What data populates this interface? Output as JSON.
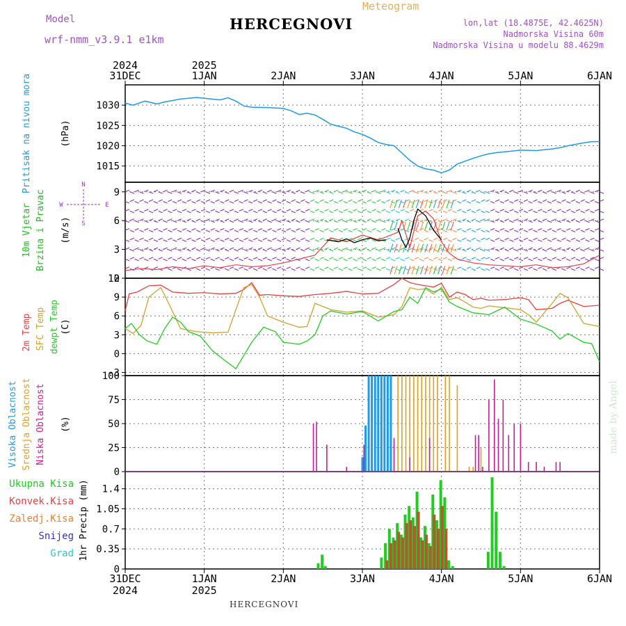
{
  "header": {
    "model_label": "Model",
    "model_value": "wrf-nmm_v3.9.1 e1km",
    "product_label": "Meteogram",
    "location": "HERCEGNOVI",
    "lonlat": "lon,lat (18.4875E, 42.4625N)",
    "elevation": "Nadmorska Visina 60m",
    "model_elevation": "Nadmorska Visina u modelu 88.4629m"
  },
  "footer": {
    "location": "HERCEGNOVI"
  },
  "watermark": "made by Angel",
  "colors": {
    "pressure": "#1e9be6",
    "wind_label": "#22bb22",
    "temp2m": "#e84040",
    "sfc": "#d4a030",
    "dewpt": "#22cc22",
    "high_cloud": "#1e9be6",
    "mid_cloud": "#e0a020",
    "low_cloud": "#cc1a9a",
    "total_precip": "#22cc22",
    "conv_precip": "#e84040",
    "freez_precip": "#f08030",
    "snow": "#3333cc",
    "hail": "#22cccc",
    "purple_text": "#9933cc"
  },
  "chart_data": [
    {
      "type": "line",
      "panel": "pressure",
      "title": "",
      "ylabel": [
        "Pritisak na nivou mora",
        "(hPa)"
      ],
      "x_ticks": [
        "31DEC",
        "1JAN",
        "2JAN",
        "3JAN",
        "4JAN",
        "5JAN",
        "6JAN"
      ],
      "x_years": [
        [
          "2024",
          "31DEC"
        ],
        [
          "2025",
          "1JAN"
        ]
      ],
      "ylim": [
        1011,
        1035
      ],
      "y_ticks": [
        1015,
        1020,
        1025,
        1030
      ],
      "grid": true,
      "series": [
        {
          "x": [
            0,
            0.1,
            0.25,
            0.4,
            0.5,
            0.7,
            0.9,
            1.0,
            1.2,
            1.3,
            1.4,
            1.5,
            1.6,
            1.8,
            2.0,
            2.1,
            2.2,
            2.3,
            2.4,
            2.5,
            2.6,
            2.7,
            2.8,
            2.9,
            3.0,
            3.1,
            3.2,
            3.3,
            3.4,
            3.5,
            3.6,
            3.7,
            3.8,
            3.9,
            4.0,
            4.1,
            4.2,
            4.3,
            4.4,
            4.5,
            4.6,
            4.7,
            4.8,
            4.9,
            5.0,
            5.2,
            5.4,
            5.5,
            5.6,
            5.8,
            5.9,
            6.0
          ],
          "y": [
            1030.5,
            1030,
            1031,
            1030.3,
            1030.8,
            1031.5,
            1031.9,
            1031.7,
            1031.3,
            1031.8,
            1031,
            1029.8,
            1029.5,
            1029.4,
            1029.2,
            1028.6,
            1027.7,
            1028.0,
            1027.6,
            1026.5,
            1025.3,
            1024.8,
            1024.3,
            1023.4,
            1022.8,
            1021.9,
            1020.8,
            1020.3,
            1020,
            1018.2,
            1016.4,
            1015.0,
            1014.3,
            1014.0,
            1013.3,
            1014.0,
            1015.5,
            1016.2,
            1016.9,
            1017.5,
            1018.0,
            1018.3,
            1018.5,
            1018.7,
            1018.9,
            1018.8,
            1019.2,
            1019.5,
            1020.0,
            1020.7,
            1021.0,
            1021.0
          ]
        }
      ]
    },
    {
      "type": "line",
      "panel": "wind",
      "title": "",
      "ylabel": [
        "10m Vjetar",
        "Brzina i Pravac",
        "(m/s)"
      ],
      "compass": [
        "N",
        "W",
        "E",
        "S"
      ],
      "ylim": [
        0,
        10
      ],
      "y_ticks": [
        0,
        3,
        6,
        9
      ],
      "grid": true,
      "series": [
        {
          "name": "",
          "x": [
            0,
            0.2,
            0.4,
            0.6,
            0.8,
            1.0,
            1.2,
            1.4,
            1.6,
            1.8,
            2.0,
            2.2,
            2.4,
            2.6,
            2.8,
            3.0,
            3.2,
            3.3,
            3.45,
            3.5,
            3.6,
            3.7,
            3.8,
            3.9,
            4.0,
            4.1,
            4.2,
            4.3,
            4.4,
            4.6,
            4.8,
            5.0,
            5.2,
            5.4,
            5.6,
            5.8,
            6.0
          ],
          "y": [
            0.8,
            1.0,
            0.9,
            1.2,
            1.0,
            1.3,
            1.1,
            1.4,
            1.2,
            1.3,
            1.6,
            2.0,
            2.4,
            4.2,
            3.8,
            4.5,
            4.0,
            4.3,
            4.8,
            6.0,
            3.2,
            6.5,
            7.0,
            6.2,
            3.8,
            2.6,
            2.0,
            1.8,
            1.6,
            1.4,
            1.3,
            1.2,
            1.4,
            1.1,
            1.2,
            1.5,
            2.4
          ]
        },
        {
          "name": "",
          "x": [
            2.55,
            2.7,
            2.8,
            2.9,
            3.0,
            3.1,
            3.2,
            3.3
          ],
          "y": [
            4.0,
            3.8,
            4.1,
            3.7,
            4.0,
            4.2,
            3.9,
            4.0
          ]
        },
        {
          "name": "",
          "x": [
            3.45,
            3.5,
            3.55,
            3.6,
            3.65,
            3.7,
            3.8,
            3.9,
            4.0
          ],
          "y": [
            5.2,
            4.0,
            3.2,
            4.2,
            6.0,
            7.2,
            6.5,
            5.0,
            4.0
          ]
        }
      ]
    },
    {
      "type": "line",
      "panel": "temperature",
      "title": "",
      "ylabel": [
        "2m Temp",
        "SFC Temp",
        "dewpt Temp",
        "(C)"
      ],
      "ylim": [
        -3.5,
        12
      ],
      "y_ticks": [
        -3,
        0,
        3,
        6,
        9,
        12
      ],
      "grid": true,
      "series": [
        {
          "name": "2m Temp",
          "x": [
            0,
            0.05,
            0.15,
            0.3,
            0.45,
            0.6,
            0.8,
            1.0,
            1.2,
            1.4,
            1.5,
            1.6,
            1.7,
            1.8,
            2.0,
            2.2,
            2.4,
            2.6,
            2.8,
            3.0,
            3.2,
            3.4,
            3.5,
            3.6,
            3.7,
            3.8,
            3.9,
            4.0,
            4.1,
            4.2,
            4.3,
            4.4,
            4.5,
            4.6,
            4.8,
            5.0,
            5.1,
            5.2,
            5.4,
            5.5,
            5.6,
            5.8,
            6.0
          ],
          "y": [
            6.8,
            9.5,
            9.8,
            10.8,
            10.9,
            9.8,
            9.6,
            9.7,
            9.5,
            9.6,
            10.2,
            11.3,
            9.3,
            9.4,
            9.2,
            9.1,
            9.4,
            9.6,
            9.9,
            9.5,
            9.6,
            11.0,
            12.0,
            11.3,
            11.0,
            10.8,
            10.6,
            11.2,
            9.0,
            9.8,
            9.4,
            8.6,
            8.8,
            8.5,
            8.6,
            8.9,
            8.6,
            7.0,
            7.2,
            8.0,
            8.5,
            7.5,
            7.7
          ]
        },
        {
          "name": "SFC Temp",
          "x": [
            0,
            0.1,
            0.2,
            0.3,
            0.45,
            0.55,
            0.7,
            0.9,
            1.1,
            1.3,
            1.4,
            1.5,
            1.6,
            1.7,
            1.8,
            2.0,
            2.2,
            2.3,
            2.4,
            2.5,
            2.6,
            2.8,
            3.0,
            3.2,
            3.4,
            3.5,
            3.6,
            3.7,
            3.8,
            3.9,
            4.0,
            4.1,
            4.2,
            4.3,
            4.4,
            4.5,
            4.6,
            4.8,
            5.0,
            5.1,
            5.2,
            5.4,
            5.5,
            5.6,
            5.8,
            6.0
          ],
          "y": [
            4.0,
            3.2,
            4.5,
            9.0,
            10.5,
            8.0,
            4.0,
            3.5,
            3.3,
            3.4,
            7.0,
            10.5,
            11.0,
            9.0,
            6.0,
            5.0,
            4.2,
            4.3,
            8.0,
            7.5,
            7.0,
            6.6,
            6.8,
            5.8,
            6.2,
            7.5,
            10.5,
            10.2,
            10.3,
            9.5,
            10.5,
            8.6,
            8.9,
            8.2,
            7.4,
            7.2,
            7.6,
            7.3,
            7.0,
            6.2,
            5.0,
            8.0,
            9.6,
            8.9,
            4.8,
            4.3
          ]
        },
        {
          "name": "dewpt Temp",
          "x": [
            0,
            0.08,
            0.18,
            0.28,
            0.4,
            0.5,
            0.6,
            0.7,
            0.8,
            0.95,
            1.1,
            1.25,
            1.4,
            1.6,
            1.75,
            1.9,
            2.0,
            2.2,
            2.3,
            2.4,
            2.5,
            2.6,
            2.8,
            3.0,
            3.2,
            3.4,
            3.5,
            3.6,
            3.7,
            3.8,
            3.9,
            4.0,
            4.1,
            4.2,
            4.4,
            4.6,
            4.8,
            5.0,
            5.2,
            5.4,
            5.5,
            5.6,
            5.8,
            5.9,
            6.0
          ],
          "y": [
            4.0,
            4.8,
            3.0,
            2.0,
            1.5,
            4.0,
            5.8,
            5.0,
            3.5,
            2.8,
            0.5,
            -1.0,
            -2.4,
            1.8,
            4.2,
            3.5,
            1.8,
            1.5,
            2.0,
            3.0,
            6.0,
            6.8,
            6.3,
            6.7,
            5.2,
            6.7,
            7.0,
            9.0,
            8.0,
            10.5,
            9.8,
            10.3,
            8.2,
            7.5,
            6.5,
            6.2,
            7.4,
            5.5,
            4.7,
            3.6,
            2.3,
            3.2,
            1.8,
            1.6,
            -1.3
          ]
        }
      ]
    },
    {
      "type": "bar",
      "panel": "clouds",
      "title": "",
      "ylabel": [
        "Visoka Oblacnost",
        "Srednja Oblacnost",
        "Niska Oblacnost",
        "(%)"
      ],
      "ylim": [
        0,
        100
      ],
      "y_ticks": [
        0,
        25,
        50,
        75,
        100
      ],
      "grid": true,
      "series": [
        {
          "name": "Visoka Oblacnost",
          "x": [
            3.0,
            3.04,
            3.08,
            3.12,
            3.16,
            3.2,
            3.24,
            3.28,
            3.32,
            3.36
          ],
          "y": [
            15,
            48,
            100,
            100,
            100,
            100,
            100,
            100,
            100,
            100
          ]
        },
        {
          "name": "Srednja Oblacnost",
          "x": [
            3.45,
            3.5,
            3.55,
            3.6,
            3.65,
            3.7,
            3.75,
            3.8,
            3.85,
            3.9,
            3.95,
            4.05,
            4.1,
            4.2,
            4.35,
            4.4,
            4.5
          ],
          "y": [
            100,
            100,
            100,
            100,
            100,
            100,
            100,
            100,
            100,
            100,
            100,
            100,
            100,
            90,
            5,
            5,
            25
          ]
        },
        {
          "name": "Niska Oblacnost",
          "x": [
            2.38,
            2.42,
            2.55,
            2.8,
            3.02,
            3.4,
            3.6,
            3.85,
            4.43,
            4.47,
            4.52,
            4.6,
            4.67,
            4.72,
            4.78,
            4.85,
            4.92,
            5.0,
            5.1,
            5.2,
            5.3,
            5.45,
            5.5
          ],
          "y": [
            50,
            52,
            28,
            5,
            28,
            35,
            15,
            35,
            38,
            38,
            5,
            75,
            96,
            55,
            75,
            38,
            50,
            50,
            10,
            10,
            5,
            10,
            10
          ]
        }
      ]
    },
    {
      "type": "bar",
      "panel": "precipitation",
      "title": "",
      "ylabel": [
        "1hr Precip (mm)"
      ],
      "legend": [
        "Ukupna Kisa",
        "Konvek.Kisa",
        "Zaledj.Kisa",
        "Snijeg",
        "Grad"
      ],
      "ylim": [
        0,
        1.7
      ],
      "y_ticks": [
        0,
        0.35,
        0.7,
        1.05,
        1.4
      ],
      "grid": true,
      "series": [
        {
          "name": "Ukupna Kisa",
          "x": [
            2.45,
            2.5,
            2.54,
            3.25,
            3.3,
            3.35,
            3.4,
            3.45,
            3.5,
            3.55,
            3.6,
            3.65,
            3.7,
            3.75,
            3.8,
            3.85,
            3.9,
            3.95,
            4.0,
            4.05,
            4.1,
            4.15,
            4.6,
            4.65,
            4.7,
            4.75,
            4.8
          ],
          "y": [
            0.1,
            0.25,
            0.05,
            0.2,
            0.45,
            0.7,
            0.55,
            0.8,
            0.6,
            0.95,
            1.1,
            0.9,
            1.35,
            0.55,
            0.75,
            0.45,
            1.3,
            0.85,
            1.55,
            1.25,
            0.15,
            0.05,
            0.3,
            1.6,
            1.0,
            0.3,
            0.05
          ]
        },
        {
          "name": "Konvek.Kisa",
          "x": [
            3.3,
            3.35,
            3.4,
            3.45,
            3.5,
            3.55,
            3.6,
            3.65,
            3.7,
            3.75,
            3.8,
            3.85,
            3.9,
            3.95,
            4.0,
            4.05
          ],
          "y": [
            0.15,
            0.45,
            0.5,
            0.65,
            0.55,
            0.8,
            0.85,
            0.75,
            1.0,
            0.5,
            0.6,
            0.4,
            0.95,
            0.7,
            1.1,
            0.7
          ]
        }
      ]
    }
  ]
}
